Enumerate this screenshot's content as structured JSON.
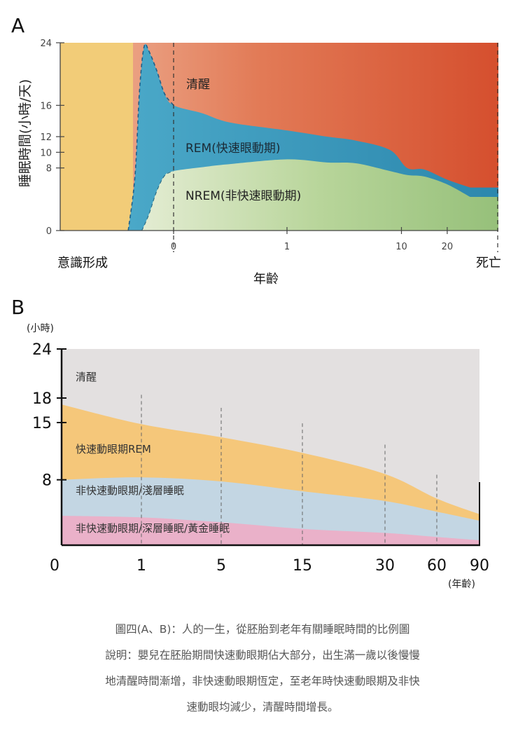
{
  "chart_data": [
    {
      "type": "area",
      "panel_label": "A",
      "ylabel": "睡眠時間(小時/天)",
      "xlabel": "年齡",
      "x_ticks": [
        "0",
        "1",
        "10",
        "20"
      ],
      "x_end_labels": [
        "意識形成",
        "死亡"
      ],
      "y_ticks": [
        "0",
        "8",
        "10",
        "12",
        "16",
        "24"
      ],
      "ylim": [
        0,
        24
      ],
      "layers": [
        {
          "name": "清醒",
          "color": "#d9663f"
        },
        {
          "name": "REM(快速眼動期)",
          "color": "#3f9bbb"
        },
        {
          "name": "NREM(非快速眼動期)",
          "color": "#a7cc86"
        }
      ],
      "pre_consciousness_color": "#f2cc78",
      "series_boundaries": {
        "total_sleep": [
          [
            -0.4,
            0
          ],
          [
            -0.34,
            7
          ],
          [
            -0.3,
            18
          ],
          [
            -0.26,
            23.5
          ],
          [
            -0.22,
            23
          ],
          [
            -0.15,
            20.5
          ],
          [
            -0.08,
            17.5
          ],
          [
            0,
            16
          ],
          [
            0.25,
            15
          ],
          [
            0.5,
            13.8
          ],
          [
            1,
            12.8
          ],
          [
            1.35,
            12
          ],
          [
            1.6,
            11.5
          ],
          [
            1.9,
            10.3
          ],
          [
            2.05,
            8
          ],
          [
            2.2,
            7.8
          ],
          [
            2.4,
            6.5
          ],
          [
            2.6,
            5.5
          ]
        ],
        "nrem": [
          [
            -0.28,
            0
          ],
          [
            -0.22,
            2
          ],
          [
            -0.15,
            5
          ],
          [
            -0.08,
            7
          ],
          [
            0,
            7.6
          ],
          [
            0.25,
            8.1
          ],
          [
            0.5,
            8.5
          ],
          [
            1,
            9.1
          ],
          [
            1.35,
            8.7
          ],
          [
            1.6,
            8.6
          ],
          [
            1.9,
            7.6
          ],
          [
            2.05,
            7.1
          ],
          [
            2.2,
            6.9
          ],
          [
            2.4,
            5.9
          ],
          [
            2.6,
            4.3
          ]
        ]
      }
    },
    {
      "type": "area",
      "panel_label": "B",
      "unit_label": "(小時)",
      "x_unit_label": "(年齡)",
      "categories": [
        "0",
        "1",
        "5",
        "15",
        "30",
        "60",
        "90"
      ],
      "y_ticks": [
        "24",
        "18",
        "15",
        "8"
      ],
      "ylim": [
        0,
        24
      ],
      "layers": [
        {
          "name": "清醒",
          "color": "#e3e0e0"
        },
        {
          "name": "快速動眼期REM",
          "color": "#f5c77a"
        },
        {
          "name": "非快速動眼期/淺層睡眠",
          "color": "#c3d6e3"
        },
        {
          "name": "非快速動眼期/深層睡眠/黃金睡眠",
          "color": "#eab1c9"
        }
      ],
      "series_boundaries": {
        "total_sleep": [
          17.2,
          14.8,
          13.2,
          11.3,
          8.7,
          5.7,
          3.8
        ],
        "rem_nrem_boundary": [
          8.0,
          8.3,
          7.8,
          6.6,
          5.4,
          4.1,
          3.0
        ],
        "deep_sleep_upper": [
          3.6,
          3.4,
          2.8,
          2.0,
          1.5,
          1.0,
          0.6
        ]
      }
    }
  ],
  "caption": {
    "lines": [
      "圖四(A、B)：人的一生，從胚胎到老年有關睡眠時間的比例圖",
      "說明：嬰兒在胚胎期間快速動眼期佔大部分，出生滿一歲以後慢慢",
      "地清醒時間漸增，非快速動眼期恆定，至老年時快速動眼期及非快",
      "速動眼均減少，清醒時間增長。"
    ]
  }
}
